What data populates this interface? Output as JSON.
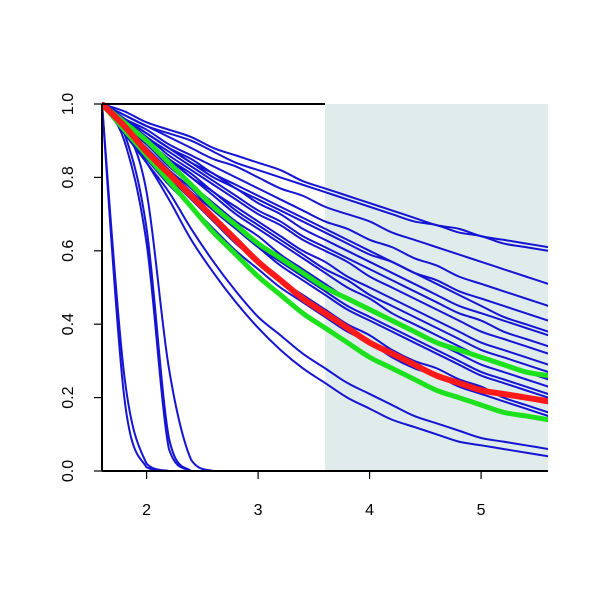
{
  "chart_data": {
    "type": "line",
    "title": "",
    "xlabel": "",
    "ylabel": "",
    "xlim": [
      1.6,
      5.6
    ],
    "ylim": [
      0.0,
      1.0
    ],
    "x_ticks": [
      2,
      3,
      4,
      5
    ],
    "y_ticks": [
      0.0,
      0.2,
      0.4,
      0.6,
      0.8,
      1.0
    ],
    "x_tick_labels": [
      "2",
      "3",
      "4",
      "5"
    ],
    "y_tick_labels": [
      "0.0",
      "0.2",
      "0.4",
      "0.6",
      "0.8",
      "1.0"
    ],
    "grid": false,
    "legend": "none",
    "shaded_region": {
      "x_start": 3.6,
      "x_end": 5.6,
      "color": "#e0ecec"
    },
    "colors": {
      "blue": "#1414d2",
      "red": "#ff1a1a",
      "green": "#1ee11e",
      "axis": "#000000"
    },
    "curve_x": [
      1.6,
      1.8,
      2.0,
      2.2,
      2.4,
      2.6,
      2.8,
      3.0,
      3.2,
      3.4,
      3.6,
      3.8,
      4.0,
      4.2,
      4.4,
      4.6,
      4.8,
      5.0,
      5.2,
      5.4,
      5.6
    ],
    "series": [
      {
        "color": "blue",
        "width": 2,
        "values": [
          1.0,
          0.2,
          0.01,
          0.0,
          0.0,
          0.0,
          0.0,
          0.0,
          0.0,
          0.0,
          0.0,
          0.0,
          0.0,
          0.0,
          0.0,
          0.0,
          0.0,
          0.0,
          0.0,
          0.0,
          0.0
        ]
      },
      {
        "color": "blue",
        "width": 2,
        "values": [
          1.0,
          0.26,
          0.02,
          0.0,
          0.0,
          0.0,
          0.0,
          0.0,
          0.0,
          0.0,
          0.0,
          0.0,
          0.0,
          0.0,
          0.0,
          0.0,
          0.0,
          0.0,
          0.0,
          0.0,
          0.0
        ]
      },
      {
        "color": "blue",
        "width": 2,
        "values": [
          1.0,
          0.9,
          0.62,
          0.06,
          0.0,
          0.0,
          0.0,
          0.0,
          0.0,
          0.0,
          0.0,
          0.0,
          0.0,
          0.0,
          0.0,
          0.0,
          0.0,
          0.0,
          0.0,
          0.0,
          0.0
        ]
      },
      {
        "color": "blue",
        "width": 2,
        "values": [
          1.0,
          0.92,
          0.66,
          0.09,
          0.0,
          0.0,
          0.0,
          0.0,
          0.0,
          0.0,
          0.0,
          0.0,
          0.0,
          0.0,
          0.0,
          0.0,
          0.0,
          0.0,
          0.0,
          0.0,
          0.0
        ]
      },
      {
        "color": "blue",
        "width": 2,
        "values": [
          1.0,
          0.94,
          0.76,
          0.28,
          0.03,
          0.0,
          0.0,
          0.0,
          0.0,
          0.0,
          0.0,
          0.0,
          0.0,
          0.0,
          0.0,
          0.0,
          0.0,
          0.0,
          0.0,
          0.0,
          0.0
        ]
      },
      {
        "color": "blue",
        "width": 2,
        "values": [
          1.0,
          0.92,
          0.84,
          0.74,
          0.63,
          0.54,
          0.46,
          0.39,
          0.33,
          0.28,
          0.24,
          0.2,
          0.17,
          0.14,
          0.12,
          0.1,
          0.08,
          0.07,
          0.06,
          0.05,
          0.04
        ]
      },
      {
        "color": "blue",
        "width": 2,
        "values": [
          1.0,
          0.92,
          0.84,
          0.76,
          0.66,
          0.57,
          0.49,
          0.42,
          0.37,
          0.32,
          0.28,
          0.24,
          0.21,
          0.18,
          0.15,
          0.13,
          0.11,
          0.09,
          0.08,
          0.07,
          0.06
        ]
      },
      {
        "color": "blue",
        "width": 2,
        "values": [
          1.0,
          0.96,
          0.91,
          0.87,
          0.83,
          0.79,
          0.75,
          0.71,
          0.68,
          0.64,
          0.61,
          0.58,
          0.55,
          0.52,
          0.49,
          0.46,
          0.43,
          0.41,
          0.38,
          0.36,
          0.34
        ]
      },
      {
        "color": "blue",
        "width": 2,
        "values": [
          1.0,
          0.95,
          0.9,
          0.85,
          0.81,
          0.76,
          0.72,
          0.68,
          0.64,
          0.6,
          0.57,
          0.53,
          0.5,
          0.47,
          0.44,
          0.41,
          0.38,
          0.35,
          0.33,
          0.31,
          0.29
        ]
      },
      {
        "color": "blue",
        "width": 2,
        "values": [
          1.0,
          0.95,
          0.9,
          0.85,
          0.8,
          0.75,
          0.7,
          0.66,
          0.62,
          0.58,
          0.54,
          0.5,
          0.47,
          0.43,
          0.4,
          0.37,
          0.34,
          0.31,
          0.29,
          0.27,
          0.25
        ]
      },
      {
        "color": "blue",
        "width": 2,
        "values": [
          1.0,
          0.94,
          0.89,
          0.83,
          0.78,
          0.73,
          0.68,
          0.64,
          0.59,
          0.55,
          0.51,
          0.47,
          0.44,
          0.41,
          0.38,
          0.35,
          0.32,
          0.29,
          0.27,
          0.25,
          0.23
        ]
      },
      {
        "color": "blue",
        "width": 2,
        "values": [
          1.0,
          0.94,
          0.88,
          0.82,
          0.76,
          0.71,
          0.66,
          0.61,
          0.56,
          0.52,
          0.48,
          0.44,
          0.41,
          0.38,
          0.35,
          0.32,
          0.29,
          0.26,
          0.24,
          0.22,
          0.2
        ]
      },
      {
        "color": "blue",
        "width": 2,
        "values": [
          1.0,
          0.93,
          0.86,
          0.8,
          0.74,
          0.68,
          0.62,
          0.57,
          0.52,
          0.48,
          0.44,
          0.4,
          0.37,
          0.33,
          0.3,
          0.28,
          0.25,
          0.23,
          0.2,
          0.18,
          0.16
        ]
      },
      {
        "color": "blue",
        "width": 2,
        "values": [
          1.0,
          0.92,
          0.85,
          0.78,
          0.72,
          0.66,
          0.6,
          0.55,
          0.5,
          0.46,
          0.42,
          0.38,
          0.35,
          0.31,
          0.28,
          0.26,
          0.23,
          0.21,
          0.19,
          0.17,
          0.15
        ]
      },
      {
        "color": "blue",
        "width": 2,
        "values": [
          1.0,
          0.96,
          0.93,
          0.89,
          0.86,
          0.83,
          0.8,
          0.77,
          0.74,
          0.71,
          0.68,
          0.66,
          0.63,
          0.61,
          0.58,
          0.56,
          0.53,
          0.51,
          0.49,
          0.47,
          0.45
        ]
      },
      {
        "color": "blue",
        "width": 2,
        "values": [
          1.0,
          0.96,
          0.92,
          0.88,
          0.84,
          0.81,
          0.77,
          0.74,
          0.71,
          0.68,
          0.65,
          0.62,
          0.59,
          0.57,
          0.54,
          0.52,
          0.49,
          0.47,
          0.45,
          0.43,
          0.41
        ]
      },
      {
        "color": "blue",
        "width": 2,
        "values": [
          1.0,
          0.97,
          0.94,
          0.92,
          0.9,
          0.87,
          0.84,
          0.82,
          0.8,
          0.78,
          0.76,
          0.74,
          0.72,
          0.7,
          0.68,
          0.67,
          0.65,
          0.64,
          0.62,
          0.61,
          0.6
        ]
      },
      {
        "color": "blue",
        "width": 2,
        "values": [
          1.0,
          0.98,
          0.95,
          0.93,
          0.91,
          0.88,
          0.86,
          0.84,
          0.82,
          0.79,
          0.77,
          0.75,
          0.73,
          0.71,
          0.69,
          0.67,
          0.66,
          0.64,
          0.63,
          0.62,
          0.61
        ]
      },
      {
        "color": "blue",
        "width": 2,
        "values": [
          1.0,
          0.97,
          0.94,
          0.91,
          0.88,
          0.85,
          0.83,
          0.8,
          0.77,
          0.75,
          0.72,
          0.7,
          0.68,
          0.65,
          0.63,
          0.61,
          0.59,
          0.57,
          0.55,
          0.53,
          0.51
        ]
      },
      {
        "color": "blue",
        "width": 2,
        "values": [
          1.0,
          0.96,
          0.92,
          0.88,
          0.84,
          0.8,
          0.77,
          0.73,
          0.7,
          0.66,
          0.63,
          0.6,
          0.57,
          0.54,
          0.51,
          0.48,
          0.45,
          0.43,
          0.41,
          0.39,
          0.37
        ]
      },
      {
        "color": "blue",
        "width": 2,
        "values": [
          1.0,
          0.95,
          0.91,
          0.86,
          0.82,
          0.78,
          0.74,
          0.7,
          0.67,
          0.63,
          0.6,
          0.57,
          0.53,
          0.5,
          0.47,
          0.44,
          0.41,
          0.38,
          0.36,
          0.34,
          0.32
        ]
      },
      {
        "color": "blue",
        "width": 2,
        "values": [
          1.0,
          0.96,
          0.92,
          0.88,
          0.85,
          0.81,
          0.78,
          0.75,
          0.72,
          0.69,
          0.66,
          0.63,
          0.6,
          0.57,
          0.54,
          0.51,
          0.48,
          0.45,
          0.42,
          0.4,
          0.38
        ]
      },
      {
        "color": "blue",
        "width": 2,
        "values": [
          1.0,
          0.95,
          0.9,
          0.85,
          0.8,
          0.76,
          0.71,
          0.67,
          0.63,
          0.59,
          0.55,
          0.52,
          0.48,
          0.45,
          0.42,
          0.39,
          0.36,
          0.33,
          0.31,
          0.29,
          0.27
        ]
      },
      {
        "color": "blue",
        "width": 2,
        "values": [
          1.0,
          0.94,
          0.88,
          0.82,
          0.77,
          0.71,
          0.66,
          0.61,
          0.57,
          0.53,
          0.49,
          0.45,
          0.42,
          0.39,
          0.36,
          0.33,
          0.3,
          0.27,
          0.25,
          0.23,
          0.21
        ]
      },
      {
        "color": "green",
        "width": 5,
        "values": [
          1.0,
          0.95,
          0.9,
          0.84,
          0.78,
          0.72,
          0.67,
          0.62,
          0.58,
          0.54,
          0.5,
          0.47,
          0.44,
          0.41,
          0.38,
          0.35,
          0.33,
          0.31,
          0.29,
          0.27,
          0.26
        ]
      },
      {
        "color": "green",
        "width": 5,
        "values": [
          1.0,
          0.93,
          0.86,
          0.79,
          0.72,
          0.65,
          0.59,
          0.53,
          0.48,
          0.43,
          0.39,
          0.35,
          0.31,
          0.28,
          0.25,
          0.22,
          0.2,
          0.18,
          0.16,
          0.15,
          0.14
        ]
      },
      {
        "color": "red",
        "width": 6,
        "values": [
          1.0,
          0.94,
          0.87,
          0.81,
          0.75,
          0.69,
          0.63,
          0.57,
          0.52,
          0.47,
          0.43,
          0.39,
          0.35,
          0.32,
          0.29,
          0.26,
          0.24,
          0.22,
          0.21,
          0.2,
          0.19
        ]
      }
    ]
  }
}
